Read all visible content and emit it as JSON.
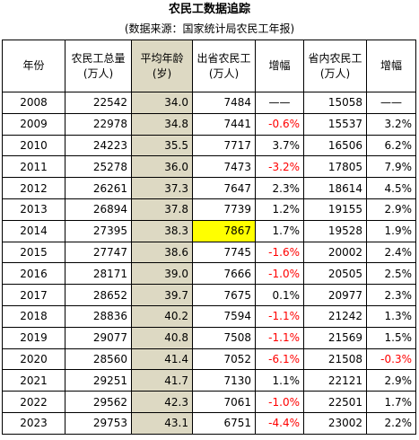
{
  "title": "农民工数据追踪",
  "subtitle": "(数据来源：国家统计局农民工年报)",
  "headers": [
    "年份",
    "农民工总量\n(万人)",
    "平均年龄\n(岁)",
    "出省农民工\n(万人)",
    "增幅",
    "省内农民工\n(万人)",
    "增幅"
  ],
  "colors": {
    "age_column_bg": "#ddd9c3",
    "highlight_bg": "#ffff00",
    "negative_text": "#ff0000"
  },
  "rows": [
    {
      "year": "2008",
      "total": "22542",
      "age": "34.0",
      "out": "7484",
      "out_growth": "——",
      "in": "15058",
      "in_growth": "——"
    },
    {
      "year": "2009",
      "total": "22978",
      "age": "34.8",
      "out": "7441",
      "out_growth": "-0.6%",
      "in": "15537",
      "in_growth": "3.2%"
    },
    {
      "year": "2010",
      "total": "24223",
      "age": "35.5",
      "out": "7717",
      "out_growth": "3.7%",
      "in": "16506",
      "in_growth": "6.2%"
    },
    {
      "year": "2011",
      "total": "25278",
      "age": "36.0",
      "out": "7473",
      "out_growth": "-3.2%",
      "in": "17805",
      "in_growth": "7.9%"
    },
    {
      "year": "2012",
      "total": "26261",
      "age": "37.3",
      "out": "7647",
      "out_growth": "2.3%",
      "in": "18614",
      "in_growth": "4.5%"
    },
    {
      "year": "2013",
      "total": "26894",
      "age": "37.8",
      "out": "7739",
      "out_growth": "1.2%",
      "in": "19155",
      "in_growth": "2.9%"
    },
    {
      "year": "2014",
      "total": "27395",
      "age": "38.3",
      "out": "7867",
      "out_growth": "1.7%",
      "in": "19528",
      "in_growth": "1.9%",
      "highlight_out": true
    },
    {
      "year": "2015",
      "total": "27747",
      "age": "38.6",
      "out": "7745",
      "out_growth": "-1.6%",
      "in": "20002",
      "in_growth": "2.4%"
    },
    {
      "year": "2016",
      "total": "28171",
      "age": "39.0",
      "out": "7666",
      "out_growth": "-1.0%",
      "in": "20505",
      "in_growth": "2.5%"
    },
    {
      "year": "2017",
      "total": "28652",
      "age": "39.7",
      "out": "7675",
      "out_growth": "0.1%",
      "in": "20977",
      "in_growth": "2.3%"
    },
    {
      "year": "2018",
      "total": "28836",
      "age": "40.2",
      "out": "7594",
      "out_growth": "-1.1%",
      "in": "21242",
      "in_growth": "1.3%"
    },
    {
      "year": "2019",
      "total": "29077",
      "age": "40.8",
      "out": "7508",
      "out_growth": "-1.1%",
      "in": "21569",
      "in_growth": "1.5%"
    },
    {
      "year": "2020",
      "total": "28560",
      "age": "41.4",
      "out": "7052",
      "out_growth": "-6.1%",
      "in": "21508",
      "in_growth": "-0.3%"
    },
    {
      "year": "2021",
      "total": "29251",
      "age": "41.7",
      "out": "7130",
      "out_growth": "1.1%",
      "in": "22121",
      "in_growth": "2.9%"
    },
    {
      "year": "2022",
      "total": "29562",
      "age": "42.3",
      "out": "7061",
      "out_growth": "-1.0%",
      "in": "22501",
      "in_growth": "1.7%"
    },
    {
      "year": "2023",
      "total": "29753",
      "age": "43.1",
      "out": "6751",
      "out_growth": "-4.4%",
      "in": "23002",
      "in_growth": "2.2%"
    }
  ]
}
